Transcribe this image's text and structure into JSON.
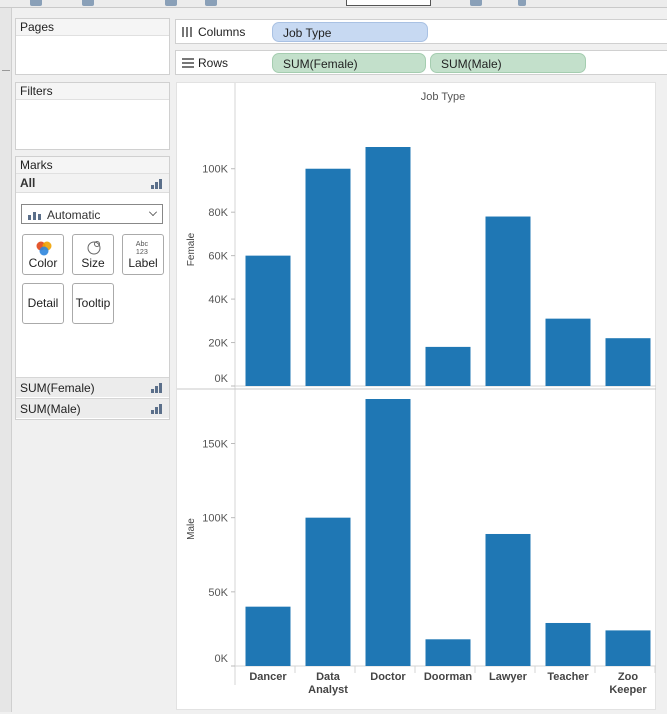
{
  "panels": {
    "pages": {
      "title": "Pages"
    },
    "filters": {
      "title": "Filters"
    },
    "marks": {
      "title": "Marks",
      "all_label": "All",
      "mark_type": "Automatic",
      "buttons": {
        "color": "Color",
        "size": "Size",
        "label": "Label",
        "detail": "Detail",
        "tooltip": "Tooltip"
      },
      "label_glyph_top": "Abc",
      "label_glyph_bottom": "123",
      "fields": [
        "SUM(Female)",
        "SUM(Male)"
      ]
    }
  },
  "shelves": {
    "columns": {
      "label": "Columns",
      "pills": [
        "Job Type"
      ]
    },
    "rows": {
      "label": "Rows",
      "pills": [
        "SUM(Female)",
        "SUM(Male)"
      ]
    }
  },
  "colors": {
    "bar": "#1f77b4",
    "column_pill": "#c7d9f2",
    "row_pill": "#c3e0cb"
  },
  "chart_data": {
    "type": "bar",
    "title": "Job Type",
    "categories": [
      "Dancer",
      "Data Analyst",
      "Doctor",
      "Doorman",
      "Lawyer",
      "Teacher",
      "Zoo Keeper"
    ],
    "category_lines": [
      [
        "Dancer"
      ],
      [
        "Data",
        "Analyst"
      ],
      [
        "Doctor"
      ],
      [
        "Doorman"
      ],
      [
        "Lawyer"
      ],
      [
        "Teacher"
      ],
      [
        "Zoo",
        "Keeper"
      ]
    ],
    "panes": [
      {
        "ylabel": "Female",
        "ylim": [
          0,
          110000
        ],
        "ticks": [
          0,
          20000,
          40000,
          60000,
          80000,
          100000
        ],
        "tick_labels": [
          "0K",
          "20K",
          "40K",
          "60K",
          "80K",
          "100K"
        ],
        "values": [
          60000,
          100000,
          110000,
          18000,
          78000,
          31000,
          22000
        ]
      },
      {
        "ylabel": "Male",
        "ylim": [
          0,
          180000
        ],
        "ticks": [
          0,
          50000,
          100000,
          150000
        ],
        "tick_labels": [
          "0K",
          "50K",
          "100K",
          "150K"
        ],
        "values": [
          40000,
          100000,
          180000,
          18000,
          89000,
          29000,
          24000
        ]
      }
    ],
    "grid": false,
    "legend": "none"
  }
}
